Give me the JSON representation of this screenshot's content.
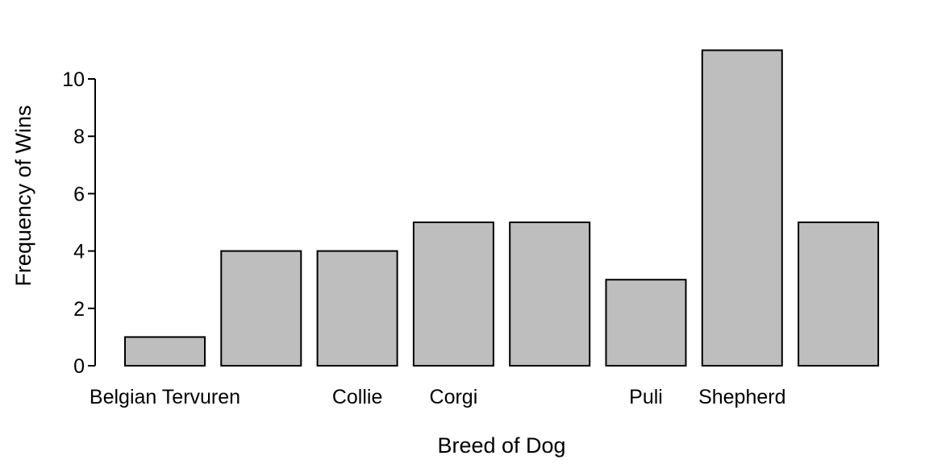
{
  "chart_data": {
    "type": "bar",
    "categories": [
      "Belgian Tervuren",
      "",
      "Collie",
      "Corgi",
      "",
      "Puli",
      "Shepherd",
      ""
    ],
    "values": [
      1,
      4,
      4,
      5,
      5,
      3,
      11,
      5
    ],
    "title": "",
    "xlabel": "Breed of Dog",
    "ylabel": "Frequency of Wins",
    "ylim": [
      0,
      11
    ],
    "yticks": [
      "0",
      "2",
      "4",
      "6",
      "8",
      "10"
    ],
    "grid": false,
    "legend": "none",
    "bar_color": "#bebebe",
    "edge_color": "#000000"
  }
}
